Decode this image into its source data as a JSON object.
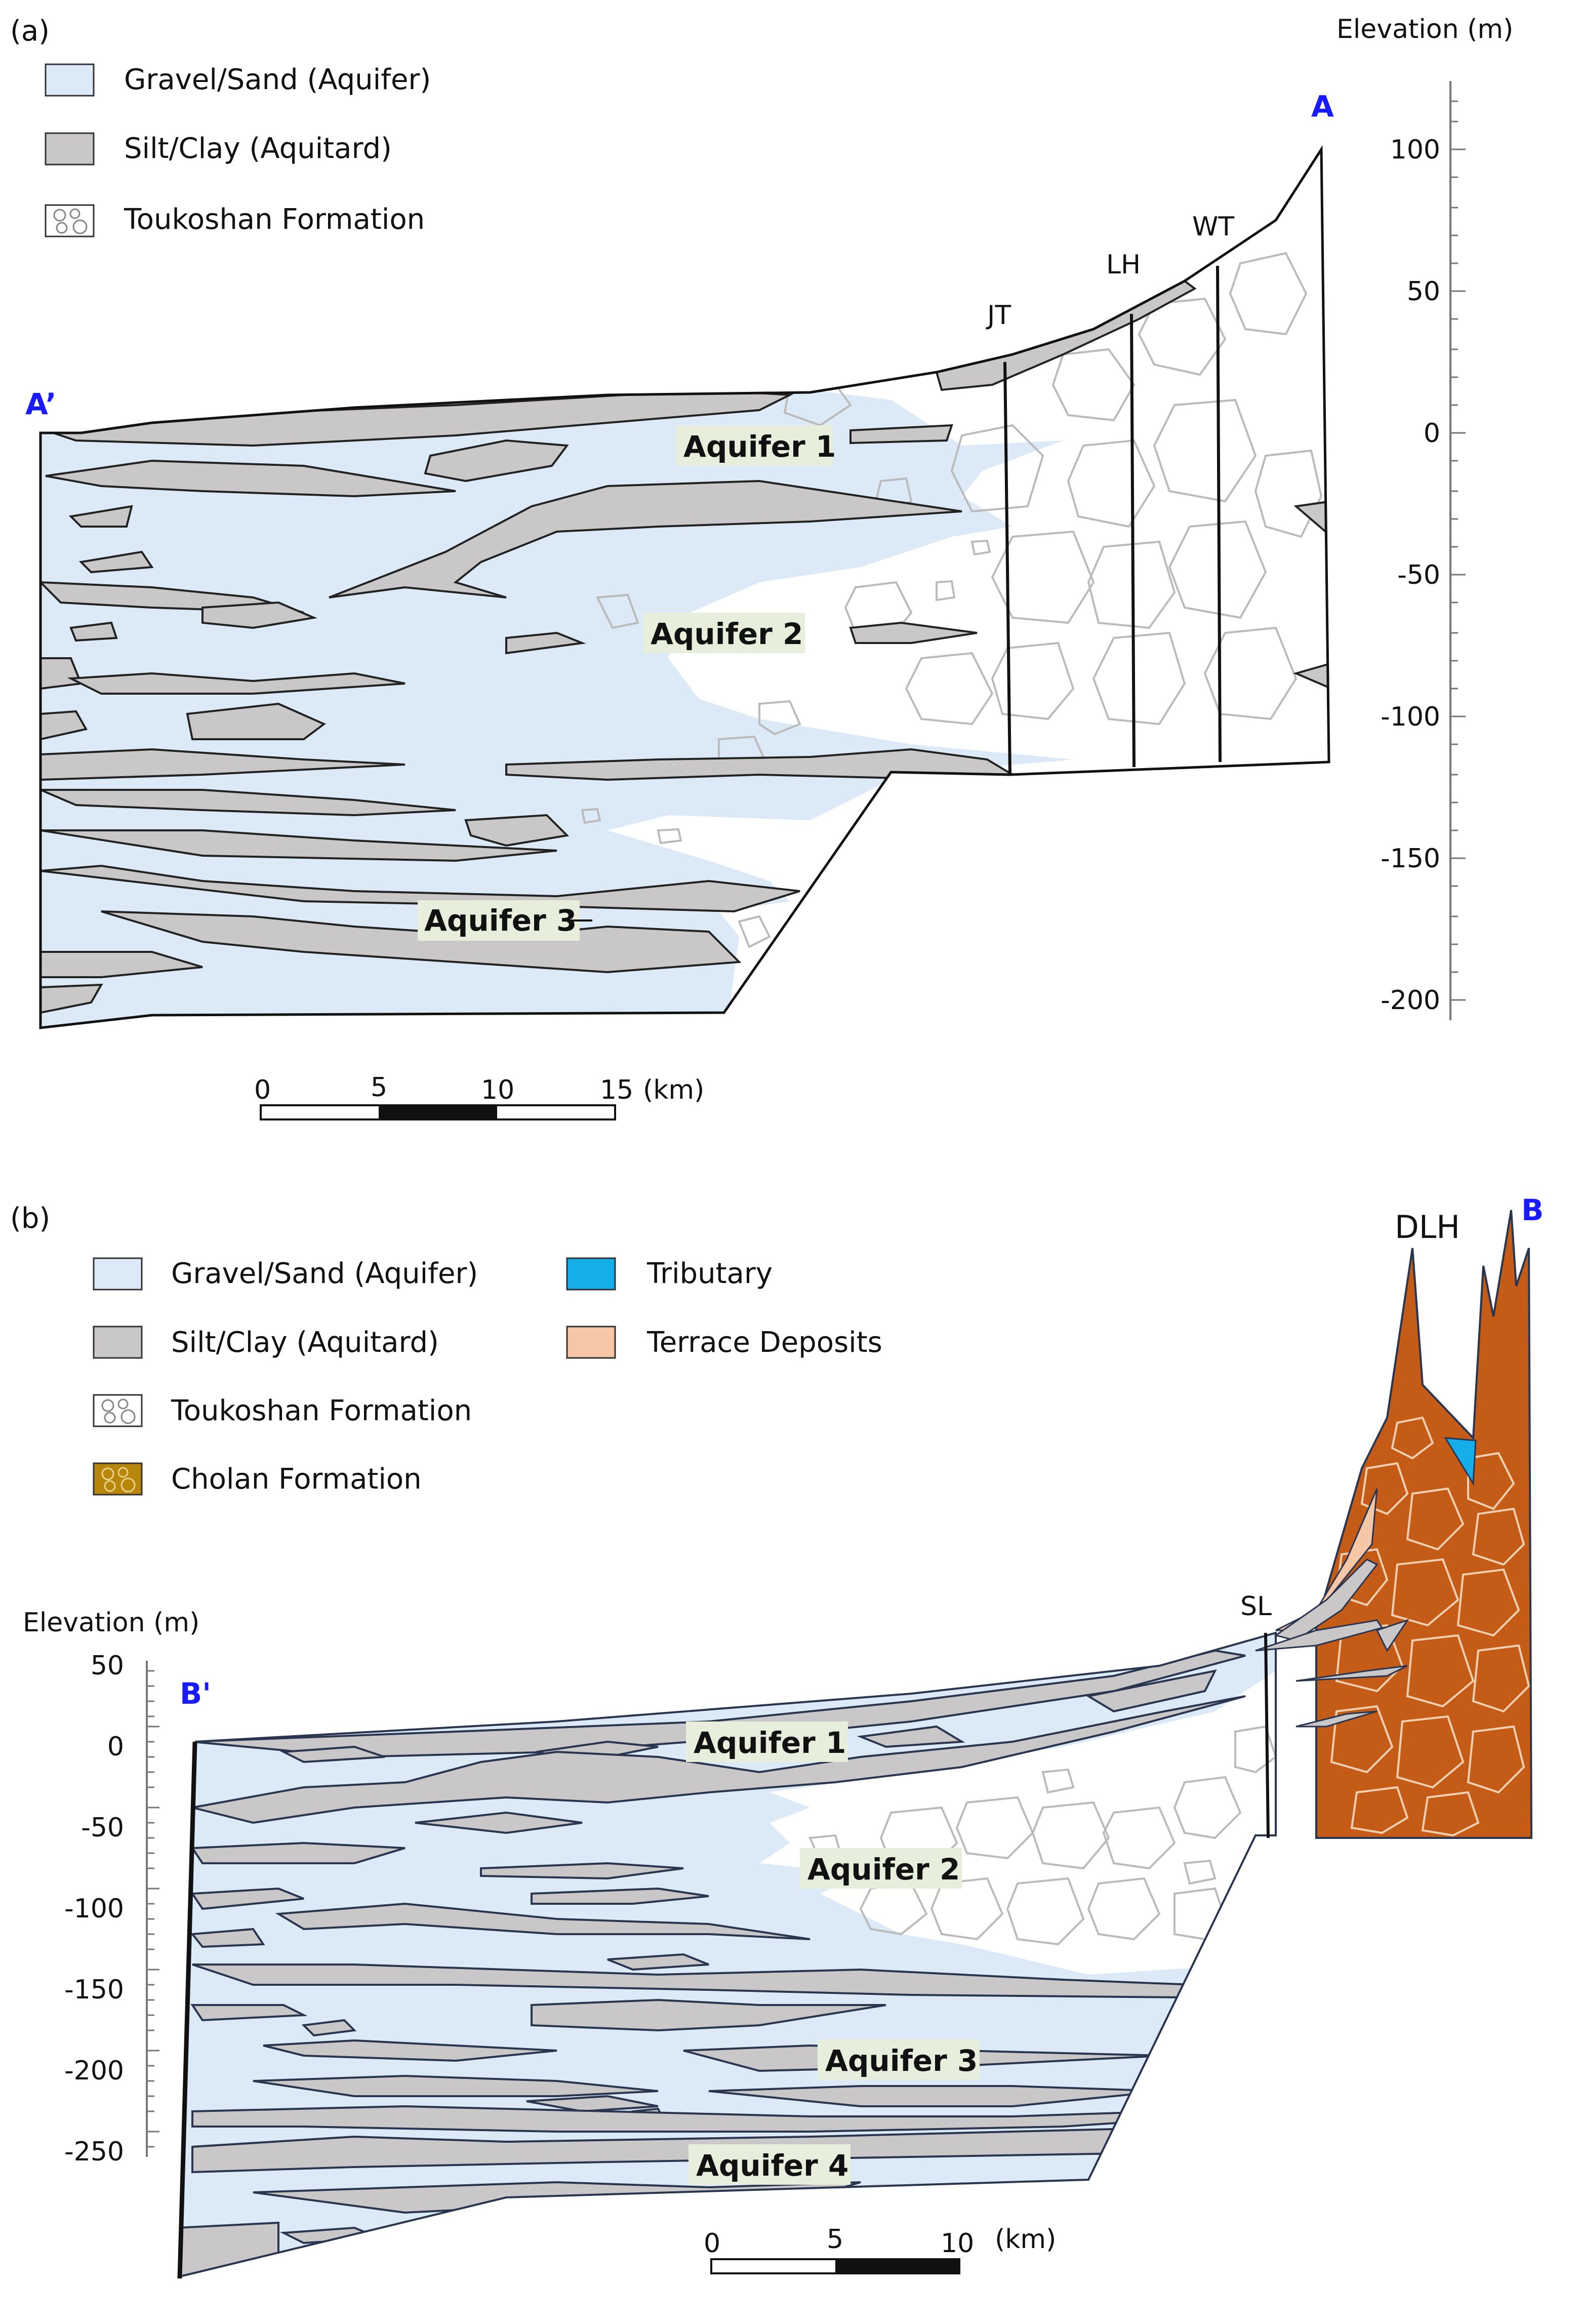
{
  "panel_a": {
    "panel_label": "(a)",
    "legend": [
      {
        "label": "Gravel/Sand (Aquifer)",
        "color": "#dce9f6",
        "pattern": "solid"
      },
      {
        "label": "Silt/Clay (Aquitard)",
        "color": "#c9c7c8",
        "pattern": "solid"
      },
      {
        "label": "Toukoshan Formation",
        "color": "#ffffff",
        "pattern": "gravel"
      }
    ],
    "end_left": "A’",
    "end_right": "A",
    "axis_title": "Elevation (m)",
    "axis_ticks": [
      "100",
      "50",
      "0",
      "-50",
      "-100",
      "-150",
      "-200"
    ],
    "wells": [
      "JT",
      "LH",
      "WT"
    ],
    "aquifers": [
      "Aquifer 1",
      "Aquifer 2",
      "Aquifer 3"
    ],
    "scale": {
      "ticks": [
        "0",
        "5",
        "10",
        "15"
      ],
      "unit": "(km)"
    }
  },
  "panel_b": {
    "panel_label": "(b)",
    "legend": [
      {
        "label": "Gravel/Sand (Aquifer)",
        "color": "#dce9f6",
        "pattern": "solid"
      },
      {
        "label": "Silt/Clay (Aquitard)",
        "color": "#c9c7c8",
        "pattern": "solid"
      },
      {
        "label": "Toukoshan Formation",
        "color": "#ffffff",
        "pattern": "gravel"
      },
      {
        "label": "Cholan Formation",
        "color": "#b8860b",
        "pattern": "gravel"
      },
      {
        "label": "Tributary",
        "color": "#16aee8",
        "pattern": "solid"
      },
      {
        "label": "Terrace Deposits",
        "color": "#f6c7a6",
        "pattern": "solid"
      }
    ],
    "end_left": "B'",
    "end_right": "B",
    "axis_title": "Elevation (m)",
    "axis_ticks": [
      "50",
      "0",
      "-50",
      "-100",
      "-150",
      "-200",
      "-250"
    ],
    "wells": [
      "SL"
    ],
    "peak_label": "DLH",
    "aquifers": [
      "Aquifer 1",
      "Aquifer 2",
      "Aquifer 3",
      "Aquifer 4"
    ],
    "scale": {
      "ticks": [
        "0",
        "5",
        "10"
      ],
      "unit": "(km)"
    }
  },
  "colors": {
    "aquifer": "#dce9f6",
    "aquitard": "#c9c7c8",
    "cholan": "#c45c18",
    "tributary": "#16aee8",
    "terrace": "#f6c7a6",
    "endpoint": "#1a1aff"
  }
}
